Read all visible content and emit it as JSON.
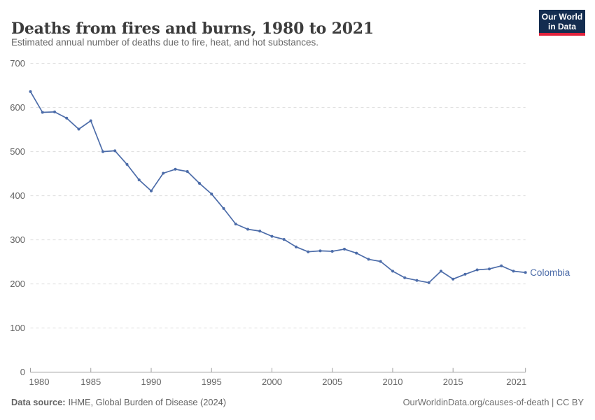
{
  "header": {
    "title": "Deaths from fires and burns, 1980 to 2021",
    "subtitle": "Estimated annual number of deaths due to fire, heat, and hot substances.",
    "logo": {
      "line1": "Our World",
      "line2": "in Data"
    }
  },
  "chart_data": {
    "type": "line",
    "title": "Deaths from fires and burns, 1980 to 2021",
    "subtitle": "Estimated annual number of deaths due to fire, heat, and hot substances.",
    "xlabel": "",
    "ylabel": "",
    "xlim": [
      1980,
      2021
    ],
    "ylim": [
      0,
      700
    ],
    "grid": "horizontal-dashed",
    "legend_position": "end-of-line-label",
    "x_tick_labels": [
      "1980",
      "1985",
      "1990",
      "1995",
      "2000",
      "2005",
      "2010",
      "2015",
      "2021"
    ],
    "x_tick_years": [
      1980,
      1985,
      1990,
      1995,
      2000,
      2005,
      2010,
      2015,
      2021
    ],
    "y_ticks": [
      0,
      100,
      200,
      300,
      400,
      500,
      600,
      700
    ],
    "series": [
      {
        "name": "Colombia",
        "color": "#4C6CA9",
        "x": [
          1980,
          1981,
          1982,
          1983,
          1984,
          1985,
          1986,
          1987,
          1988,
          1989,
          1990,
          1991,
          1992,
          1993,
          1994,
          1995,
          1996,
          1997,
          1998,
          1999,
          2000,
          2001,
          2002,
          2003,
          2004,
          2005,
          2006,
          2007,
          2008,
          2009,
          2010,
          2011,
          2012,
          2013,
          2014,
          2015,
          2016,
          2017,
          2018,
          2019,
          2020,
          2021
        ],
        "values": [
          636,
          589,
          590,
          576,
          551,
          570,
          500,
          502,
          471,
          436,
          411,
          451,
          460,
          455,
          428,
          404,
          371,
          336,
          324,
          320,
          308,
          301,
          284,
          273,
          275,
          274,
          279,
          270,
          256,
          251,
          229,
          214,
          208,
          203,
          229,
          211,
          222,
          232,
          234,
          241,
          229,
          226
        ]
      }
    ]
  },
  "footer": {
    "source_label": "Data source:",
    "source_text": "IHME, Global Burden of Disease (2024)",
    "link_text": "OurWorldinData.org/causes-of-death | CC BY"
  },
  "colors": {
    "line": "#4C6CA9",
    "grid": "#dddddd",
    "axis": "#9e9e9e",
    "tick_text": "#636363",
    "title_text": "#3c3c3c",
    "subtitle_text": "#666666",
    "logo_bg": "#142d50",
    "logo_accent": "#e1233c"
  }
}
